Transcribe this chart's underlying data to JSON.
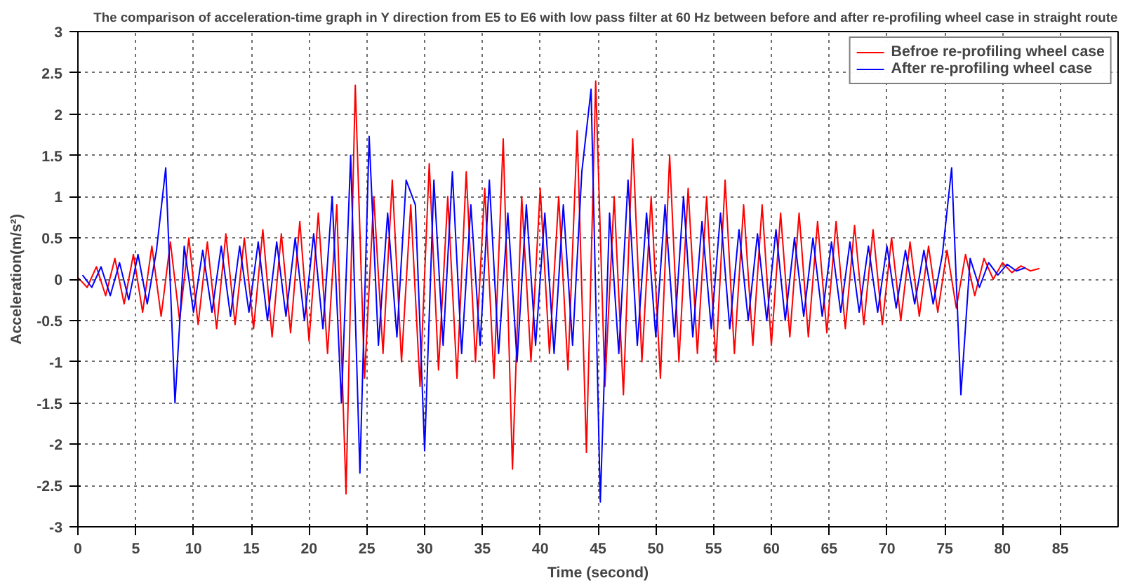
{
  "chart_data": {
    "type": "line",
    "title": "The comparison of acceleration-time graph in Y direction from E5 to E6 with low pass filter at 60 Hz between before and after re-profiling wheel case in straight route",
    "xlabel": "Time (second)",
    "ylabel": "Acceleration(m/s²)",
    "xlim": [
      0,
      90
    ],
    "xticks": [
      0,
      5,
      10,
      15,
      20,
      25,
      30,
      35,
      40,
      45,
      50,
      55,
      60,
      65,
      70,
      75,
      80,
      85
    ],
    "ylim": [
      -3,
      3
    ],
    "yticks": [
      -3,
      -2.5,
      -2,
      -1.5,
      -1,
      -0.5,
      0,
      0.5,
      1,
      1.5,
      2,
      2.5,
      3
    ],
    "grid": true,
    "legend": "top right",
    "line_style": "solid",
    "series": [
      {
        "name": "Befroe re-profiling wheel case",
        "color": "#ff0000",
        "x": [
          0,
          0.8,
          1.6,
          2.4,
          3.2,
          4.0,
          4.8,
          5.6,
          6.4,
          7.2,
          8.0,
          8.8,
          9.6,
          10.4,
          11.2,
          12.0,
          12.8,
          13.6,
          14.4,
          15.2,
          16.0,
          16.8,
          17.6,
          18.4,
          19.2,
          20.0,
          20.8,
          21.6,
          22.4,
          23.2,
          24.0,
          24.8,
          25.6,
          26.4,
          27.2,
          28.0,
          28.8,
          29.6,
          30.4,
          31.2,
          32.0,
          32.8,
          33.6,
          34.4,
          35.2,
          36.0,
          36.8,
          37.6,
          38.4,
          39.2,
          40.0,
          40.8,
          41.6,
          42.4,
          43.2,
          44.0,
          44.8,
          45.6,
          46.4,
          47.2,
          48.0,
          48.8,
          49.6,
          50.4,
          51.2,
          52.0,
          52.8,
          53.6,
          54.4,
          55.2,
          56.0,
          56.8,
          57.6,
          58.4,
          59.2,
          60.0,
          60.8,
          61.6,
          62.4,
          63.2,
          64.0,
          64.8,
          65.6,
          66.4,
          67.2,
          68.0,
          68.8,
          69.6,
          70.4,
          71.2,
          72.0,
          72.8,
          73.6,
          74.4,
          75.2,
          76.0,
          76.8,
          77.6,
          78.4,
          79.2,
          80.0,
          80.8,
          81.6,
          82.4,
          83.2
        ],
        "values": [
          0.02,
          -0.1,
          0.15,
          -0.2,
          0.25,
          -0.3,
          0.3,
          -0.4,
          0.4,
          -0.45,
          0.45,
          -0.5,
          0.5,
          -0.55,
          0.45,
          -0.6,
          0.55,
          -0.55,
          0.5,
          -0.6,
          0.6,
          -0.7,
          0.55,
          -0.65,
          0.7,
          -0.75,
          0.8,
          -0.9,
          0.9,
          -2.6,
          2.35,
          -1.2,
          1.0,
          -0.9,
          1.2,
          -1.0,
          0.9,
          -1.3,
          1.4,
          -1.1,
          1.0,
          -1.2,
          1.3,
          -1.0,
          1.1,
          -1.2,
          1.7,
          -2.3,
          1.0,
          -1.0,
          1.1,
          -0.9,
          1.0,
          -1.1,
          1.8,
          -2.1,
          2.4,
          -1.3,
          1.0,
          -1.4,
          1.7,
          -1.0,
          1.0,
          -1.2,
          1.5,
          -1.0,
          1.1,
          -0.9,
          1.0,
          -1.0,
          1.2,
          -0.9,
          0.9,
          -0.8,
          0.9,
          -0.8,
          0.8,
          -0.7,
          0.8,
          -0.7,
          0.7,
          -0.65,
          0.7,
          -0.6,
          0.65,
          -0.55,
          0.6,
          -0.55,
          0.5,
          -0.5,
          0.45,
          -0.45,
          0.4,
          -0.4,
          0.35,
          -0.35,
          0.3,
          -0.2,
          0.25,
          0.0,
          0.2,
          0.08,
          0.16,
          0.1,
          0.13
        ]
      },
      {
        "name": "After re-profiling wheel case",
        "color": "#0000ff",
        "x": [
          0.4,
          1.2,
          2.0,
          2.8,
          3.6,
          4.4,
          5.2,
          6.0,
          6.8,
          7.6,
          8.4,
          9.2,
          10.0,
          10.8,
          11.6,
          12.4,
          13.2,
          14.0,
          14.8,
          15.6,
          16.4,
          17.2,
          18.0,
          18.8,
          19.6,
          20.4,
          21.2,
          22.0,
          22.8,
          23.6,
          24.4,
          25.2,
          26.0,
          26.8,
          27.6,
          28.4,
          29.2,
          30.0,
          30.8,
          31.6,
          32.4,
          33.2,
          34.0,
          34.8,
          35.6,
          36.4,
          37.2,
          38.0,
          38.8,
          39.6,
          40.4,
          41.2,
          42.0,
          42.8,
          43.6,
          44.4,
          45.2,
          46.0,
          46.8,
          47.6,
          48.4,
          49.2,
          50.0,
          50.8,
          51.6,
          52.4,
          53.2,
          54.0,
          54.8,
          55.6,
          56.4,
          57.2,
          58.0,
          58.8,
          59.6,
          60.4,
          61.2,
          62.0,
          62.8,
          63.6,
          64.4,
          65.2,
          66.0,
          66.8,
          67.6,
          68.4,
          69.2,
          70.0,
          70.8,
          71.6,
          72.4,
          73.2,
          74.0,
          74.8,
          75.6,
          76.4,
          77.2,
          78.0,
          78.8,
          79.6,
          80.4,
          81.2,
          82.0
        ],
        "values": [
          0.05,
          -0.1,
          0.15,
          -0.2,
          0.2,
          -0.25,
          0.3,
          -0.3,
          0.35,
          1.35,
          -1.5,
          0.4,
          -0.4,
          0.35,
          -0.4,
          0.4,
          -0.45,
          0.4,
          -0.4,
          0.45,
          -0.5,
          0.45,
          -0.45,
          0.5,
          -0.5,
          0.55,
          -0.6,
          1.0,
          -1.5,
          1.5,
          -2.35,
          1.73,
          -0.8,
          0.8,
          -0.7,
          1.2,
          0.9,
          -2.08,
          1.2,
          -0.8,
          1.3,
          -0.9,
          0.9,
          -0.8,
          1.2,
          -0.9,
          0.8,
          -1.0,
          0.9,
          -0.8,
          0.8,
          -0.9,
          0.9,
          -0.8,
          1.3,
          2.3,
          -2.7,
          0.8,
          -0.9,
          1.2,
          -0.8,
          0.8,
          -0.7,
          0.9,
          -0.7,
          1.0,
          -0.7,
          0.7,
          -0.6,
          0.8,
          -0.6,
          0.6,
          -0.5,
          0.55,
          -0.5,
          0.6,
          -0.5,
          0.5,
          -0.45,
          0.5,
          -0.45,
          0.45,
          -0.4,
          0.45,
          -0.4,
          0.4,
          -0.4,
          0.4,
          -0.35,
          0.35,
          -0.3,
          0.35,
          -0.3,
          0.3,
          1.35,
          -1.4,
          0.25,
          -0.1,
          0.2,
          0.05,
          0.18,
          0.1,
          0.14
        ]
      }
    ]
  }
}
